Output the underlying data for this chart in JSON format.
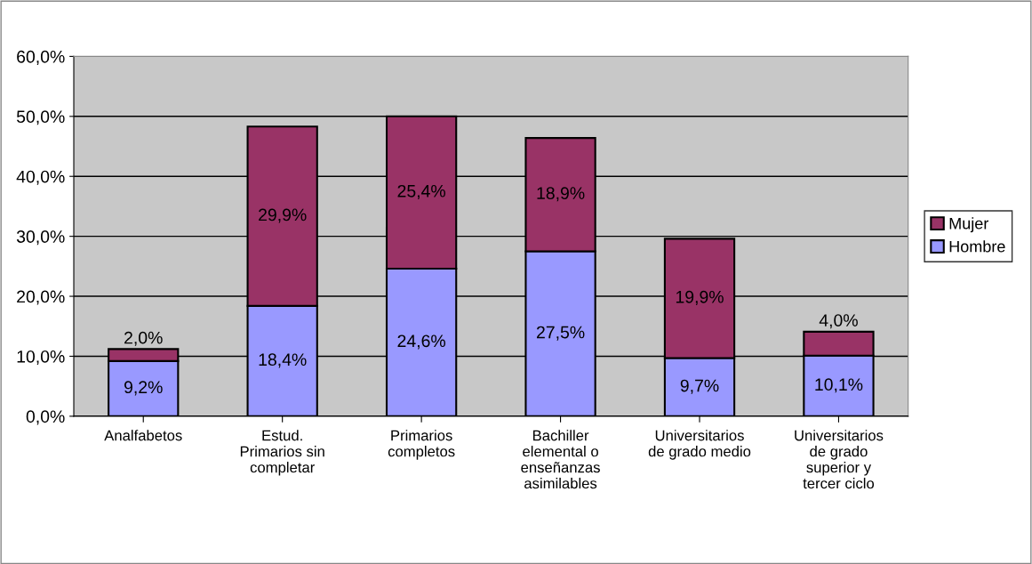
{
  "chart_data": {
    "type": "bar",
    "stacked": true,
    "categories": [
      "Analfabetos",
      "Estud.\nPrimarios sin\ncompletar",
      "Primarios\ncompletos",
      "Bachiller\nelemental o\nenseñanzas\nasimilables",
      "Universitarios\nde grado medio",
      "Universitarios\nde grado\nsuperior y\ntercer ciclo"
    ],
    "series": [
      {
        "name": "Hombre",
        "color": "#9999ff",
        "values": [
          9.2,
          18.4,
          24.6,
          27.5,
          9.7,
          10.1
        ],
        "value_labels": [
          "9,2%",
          "18,4%",
          "24,6%",
          "27,5%",
          "9,7%",
          "10,1%"
        ]
      },
      {
        "name": "Mujer",
        "color": "#993366",
        "values": [
          2.0,
          29.9,
          25.4,
          18.9,
          19.9,
          4.0
        ],
        "value_labels": [
          "2,0%",
          "29,9%",
          "25,4%",
          "18,9%",
          "19,9%",
          "4,0%"
        ]
      }
    ],
    "ylim": [
      0,
      60
    ],
    "yticks": [
      {
        "value": 0,
        "label": "0,0%"
      },
      {
        "value": 10,
        "label": "10,0%"
      },
      {
        "value": 20,
        "label": "20,0%"
      },
      {
        "value": 30,
        "label": "30,0%"
      },
      {
        "value": 40,
        "label": "40,0%"
      },
      {
        "value": 50,
        "label": "50,0%"
      },
      {
        "value": 60,
        "label": "60,0%"
      }
    ],
    "grid": "y",
    "legend": "right"
  }
}
